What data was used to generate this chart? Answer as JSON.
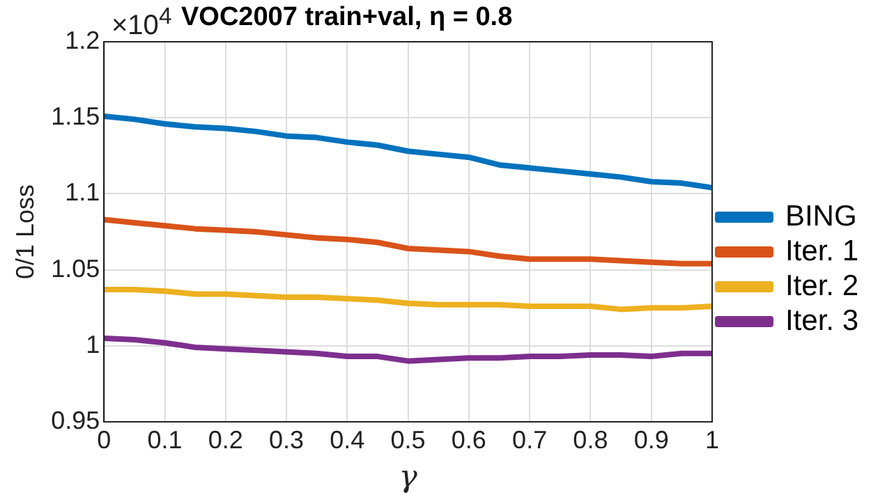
{
  "chart_data": {
    "type": "line",
    "title": "VOC2007 train+val, η = 0.8",
    "xlabel": "γ",
    "ylabel": "0/1 Loss",
    "annotations": [
      "×10$^{4}$"
    ],
    "x": [
      0,
      0.05,
      0.1,
      0.15,
      0.2,
      0.25,
      0.3,
      0.35,
      0.4,
      0.45,
      0.5,
      0.55,
      0.6,
      0.65,
      0.7,
      0.75,
      0.8,
      0.85,
      0.9,
      0.95,
      1
    ],
    "series": [
      {
        "name": "BING",
        "color": "#0072bd",
        "values": [
          1.151,
          1.149,
          1.146,
          1.144,
          1.143,
          1.141,
          1.138,
          1.137,
          1.134,
          1.132,
          1.128,
          1.126,
          1.124,
          1.119,
          1.117,
          1.115,
          1.113,
          1.111,
          1.108,
          1.107,
          1.104
        ]
      },
      {
        "name": "Iter. 1",
        "color": "#d95319",
        "values": [
          1.083,
          1.081,
          1.079,
          1.077,
          1.076,
          1.075,
          1.073,
          1.071,
          1.07,
          1.068,
          1.064,
          1.063,
          1.062,
          1.059,
          1.057,
          1.057,
          1.057,
          1.056,
          1.055,
          1.054,
          1.054
        ]
      },
      {
        "name": "Iter. 2",
        "color": "#edb120",
        "values": [
          1.037,
          1.037,
          1.036,
          1.034,
          1.034,
          1.033,
          1.032,
          1.032,
          1.031,
          1.03,
          1.028,
          1.027,
          1.027,
          1.027,
          1.026,
          1.026,
          1.026,
          1.024,
          1.025,
          1.025,
          1.026
        ]
      },
      {
        "name": "Iter. 3",
        "color": "#7e2f8e",
        "values": [
          1.005,
          1.004,
          1.002,
          0.999,
          0.998,
          0.997,
          0.996,
          0.995,
          0.993,
          0.993,
          0.99,
          0.991,
          0.992,
          0.992,
          0.993,
          0.993,
          0.994,
          0.994,
          0.993,
          0.995,
          0.995
        ]
      }
    ],
    "xlim": [
      0,
      1
    ],
    "xticks": [
      0,
      0.1,
      0.2,
      0.3,
      0.4,
      0.5,
      0.6,
      0.7,
      0.8,
      0.9,
      1
    ],
    "ylim": [
      0.95,
      1.2
    ],
    "yticks": [
      0.95,
      1,
      1.05,
      1.1,
      1.15,
      1.2
    ],
    "grid": true,
    "legend": "right",
    "marker": "none",
    "line_style": "solid"
  }
}
